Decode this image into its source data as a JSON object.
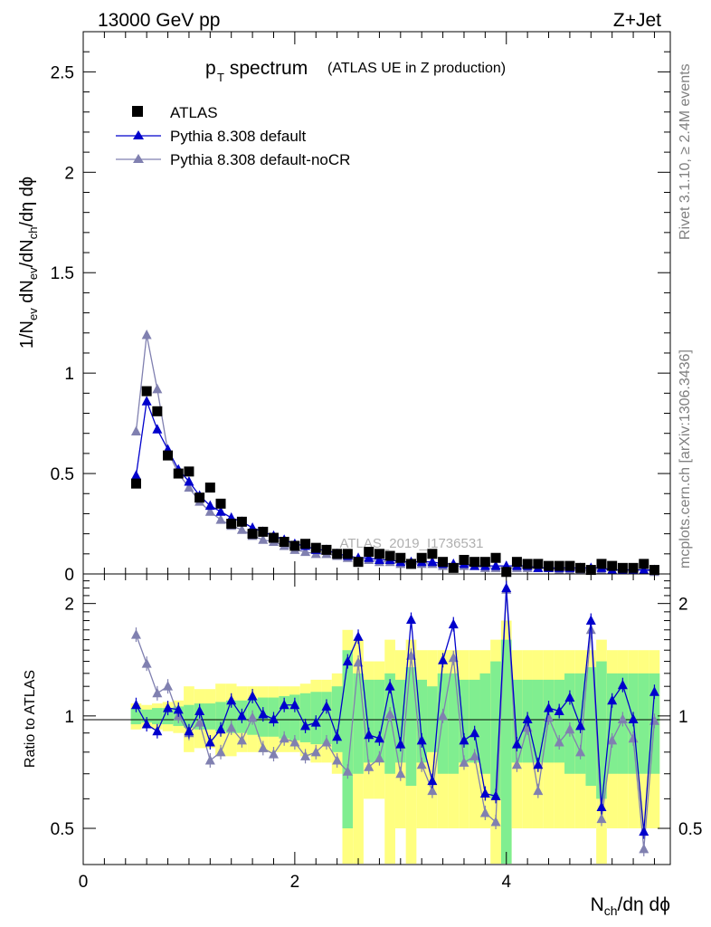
{
  "header": {
    "energy": "13000 GeV pp",
    "process": "Z+Jet"
  },
  "side_labels": {
    "rivet": "Rivet 3.1.10, ≥ 2.4M events",
    "mcplots": "mcplots.cern.ch [arXiv:1306.3436]"
  },
  "watermark": "ATLAS_2019_I1736531",
  "chart_data": [
    {
      "type": "scatter",
      "panel": "main",
      "title_main": "p",
      "title_sub": "T",
      "title_rest": " spectrum",
      "title_note": "(ATLAS UE in Z production)",
      "ylabel": "1/N_ev dN_ev/dN_ch/dη dϕ",
      "xlabel": "N_ch/dη dϕ",
      "xlim": [
        0,
        5.55
      ],
      "ylim": [
        0,
        2.7
      ],
      "y_ticks": [
        {
          "v": 0,
          "label": "0"
        },
        {
          "v": 0.5,
          "label": "0.5"
        },
        {
          "v": 1,
          "label": "1"
        },
        {
          "v": 1.5,
          "label": "1.5"
        },
        {
          "v": 2,
          "label": "2"
        },
        {
          "v": 2.5,
          "label": "2.5"
        }
      ],
      "legend": [
        {
          "name": "ATLAS",
          "color": "#000000",
          "marker": "square"
        },
        {
          "name": "Pythia 8.308 default",
          "color": "#0000cc",
          "marker": "triangle"
        },
        {
          "name": "Pythia 8.308 default-noCR",
          "color": "#8080b0",
          "marker": "triangle"
        }
      ],
      "legend_position": "top-left",
      "x": [
        0.5,
        0.6,
        0.7,
        0.8,
        0.9,
        1.0,
        1.1,
        1.2,
        1.3,
        1.4,
        1.5,
        1.6,
        1.7,
        1.8,
        1.9,
        2.0,
        2.1,
        2.2,
        2.3,
        2.4,
        2.5,
        2.6,
        2.7,
        2.8,
        2.9,
        3.0,
        3.1,
        3.2,
        3.3,
        3.4,
        3.5,
        3.6,
        3.7,
        3.8,
        3.9,
        4.0,
        4.1,
        4.2,
        4.3,
        4.4,
        4.5,
        4.6,
        4.7,
        4.8,
        4.9,
        5.0,
        5.1,
        5.2,
        5.3,
        5.4
      ],
      "series": [
        {
          "name": "ATLAS",
          "values": [
            0.45,
            0.91,
            0.81,
            0.59,
            0.5,
            0.51,
            0.38,
            0.43,
            0.35,
            0.25,
            0.26,
            0.2,
            0.21,
            0.18,
            0.16,
            0.14,
            0.15,
            0.13,
            0.12,
            0.1,
            0.1,
            0.06,
            0.11,
            0.1,
            0.09,
            0.08,
            0.05,
            0.08,
            0.1,
            0.06,
            0.03,
            0.07,
            0.06,
            0.06,
            0.08,
            0.01,
            0.06,
            0.05,
            0.05,
            0.04,
            0.04,
            0.04,
            0.03,
            0.02,
            0.05,
            0.04,
            0.03,
            0.03,
            0.05,
            0.02
          ]
        },
        {
          "name": "Pythia 8.308 default",
          "values": [
            0.49,
            0.86,
            0.72,
            0.62,
            0.52,
            0.46,
            0.39,
            0.34,
            0.31,
            0.28,
            0.26,
            0.23,
            0.21,
            0.19,
            0.17,
            0.15,
            0.14,
            0.12,
            0.12,
            0.1,
            0.09,
            0.08,
            0.08,
            0.07,
            0.07,
            0.06,
            0.06,
            0.06,
            0.06,
            0.05,
            0.05,
            0.05,
            0.04,
            0.04,
            0.04,
            0.04,
            0.04,
            0.04,
            0.03,
            0.03,
            0.03,
            0.03,
            0.03,
            0.03,
            0.03,
            0.02,
            0.02,
            0.02,
            0.02,
            0.02
          ]
        },
        {
          "name": "Pythia 8.308 default-noCR",
          "values": [
            0.71,
            1.19,
            0.92,
            0.61,
            0.5,
            0.43,
            0.36,
            0.31,
            0.27,
            0.24,
            0.22,
            0.19,
            0.17,
            0.16,
            0.14,
            0.12,
            0.11,
            0.1,
            0.1,
            0.09,
            0.08,
            0.07,
            0.07,
            0.06,
            0.06,
            0.05,
            0.05,
            0.05,
            0.05,
            0.04,
            0.04,
            0.04,
            0.04,
            0.03,
            0.03,
            0.03,
            0.03,
            0.03,
            0.03,
            0.03,
            0.02,
            0.02,
            0.02,
            0.02,
            0.02,
            0.02,
            0.02,
            0.02,
            0.02,
            0.01
          ]
        }
      ]
    },
    {
      "type": "scatter",
      "panel": "ratio",
      "ylabel": "Ratio to ATLAS",
      "xlabel": "N_ch/dη dϕ",
      "xlim": [
        0,
        5.55
      ],
      "ylim": [
        0.4,
        2.4
      ],
      "y_ticks": [
        {
          "v": 0.5,
          "label": "0.5"
        },
        {
          "v": 1,
          "label": "1"
        },
        {
          "v": 2,
          "label": "2"
        }
      ],
      "x_ticks": [
        {
          "v": 0,
          "label": "0"
        },
        {
          "v": 2,
          "label": "2"
        },
        {
          "v": 4,
          "label": "4"
        }
      ],
      "band_colors": {
        "inner": "#80ee90",
        "outer": "#ffff80"
      },
      "x": [
        0.5,
        0.6,
        0.7,
        0.8,
        0.9,
        1.0,
        1.1,
        1.2,
        1.3,
        1.4,
        1.5,
        1.6,
        1.7,
        1.8,
        1.9,
        2.0,
        2.1,
        2.2,
        2.3,
        2.4,
        2.5,
        2.6,
        2.7,
        2.8,
        2.9,
        3.0,
        3.1,
        3.2,
        3.3,
        3.4,
        3.5,
        3.6,
        3.7,
        3.8,
        3.9,
        4.0,
        4.1,
        4.2,
        4.3,
        4.4,
        4.5,
        4.6,
        4.7,
        4.8,
        4.9,
        5.0,
        5.1,
        5.2,
        5.3,
        5.4
      ],
      "band_inner": [
        0.05,
        0.04,
        0.05,
        0.05,
        0.06,
        0.07,
        0.08,
        0.08,
        0.09,
        0.1,
        0.1,
        0.11,
        0.12,
        0.12,
        0.13,
        0.14,
        0.15,
        0.16,
        0.16,
        0.2,
        0.5,
        0.3,
        0.25,
        0.25,
        0.3,
        0.25,
        0.35,
        0.25,
        0.2,
        0.3,
        0.3,
        0.25,
        0.25,
        0.3,
        0.4,
        0.6,
        0.25,
        0.25,
        0.25,
        0.25,
        0.25,
        0.3,
        0.3,
        0.35,
        0.4,
        0.3,
        0.3,
        0.3,
        0.3,
        0.3
      ],
      "band_outer": [
        0.08,
        0.07,
        0.08,
        0.09,
        0.1,
        0.2,
        0.18,
        0.18,
        0.22,
        0.22,
        0.2,
        0.2,
        0.2,
        0.2,
        0.2,
        0.2,
        0.22,
        0.25,
        0.25,
        0.3,
        0.7,
        0.6,
        0.4,
        0.4,
        0.6,
        0.5,
        0.6,
        0.5,
        0.5,
        0.5,
        0.5,
        0.5,
        0.5,
        0.5,
        0.6,
        0.8,
        0.5,
        0.5,
        0.5,
        0.5,
        0.5,
        0.5,
        0.5,
        0.5,
        0.6,
        0.5,
        0.5,
        0.5,
        0.5,
        0.5
      ],
      "series": [
        {
          "name": "Pythia 8.308 default",
          "values": [
            1.07,
            0.95,
            0.91,
            1.05,
            1.04,
            0.91,
            1.03,
            0.85,
            0.92,
            1.1,
            1.0,
            1.13,
            1.01,
            0.98,
            1.07,
            1.07,
            0.94,
            0.96,
            1.06,
            0.88,
            1.4,
            1.63,
            0.89,
            0.87,
            1.2,
            0.84,
            1.81,
            0.86,
            0.67,
            1.41,
            1.76,
            0.86,
            0.9,
            0.62,
            0.61,
            2.2,
            0.84,
            0.98,
            0.74,
            1.05,
            1.03,
            1.12,
            0.94,
            1.8,
            0.57,
            1.1,
            1.21,
            0.98,
            0.49,
            1.16
          ]
        },
        {
          "name": "Pythia 8.308 default-noCR",
          "values": [
            1.65,
            1.38,
            1.15,
            1.2,
            1.0,
            0.9,
            0.96,
            0.76,
            0.8,
            0.93,
            0.86,
            0.99,
            0.82,
            0.79,
            0.87,
            0.85,
            0.78,
            0.8,
            0.85,
            0.76,
            0.71,
            1.39,
            0.73,
            0.77,
            1.01,
            0.7,
            1.45,
            0.74,
            0.63,
            1.0,
            1.43,
            0.75,
            0.78,
            0.55,
            0.52,
            2.18,
            0.74,
            0.93,
            0.63,
            0.99,
            0.85,
            0.92,
            0.8,
            1.7,
            0.53,
            0.86,
            0.98,
            0.87,
            0.44,
            0.97
          ]
        }
      ]
    }
  ]
}
